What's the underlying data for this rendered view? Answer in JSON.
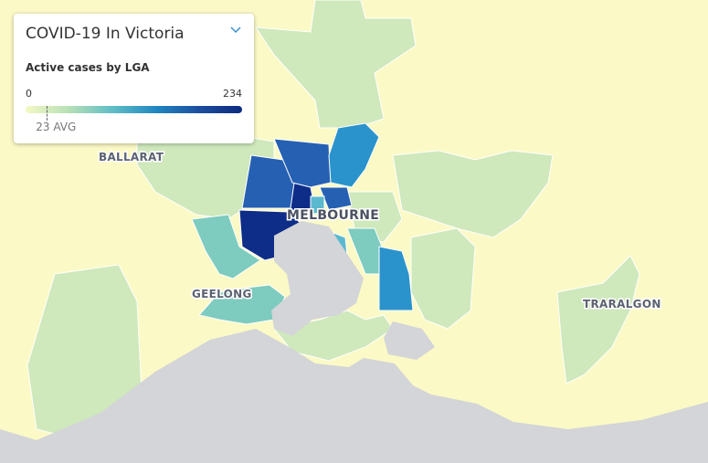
{
  "panel": {
    "title": "COVID-19 In Victoria",
    "subtitle": "Active cases by LGA"
  },
  "legend": {
    "min": 0,
    "max": 234,
    "avg": {
      "value": 23,
      "label": "23 AVG"
    }
  },
  "map_labels": [
    "BALLARAT",
    "MELBOURNE",
    "GEELONG",
    "TRARALGON"
  ]
}
